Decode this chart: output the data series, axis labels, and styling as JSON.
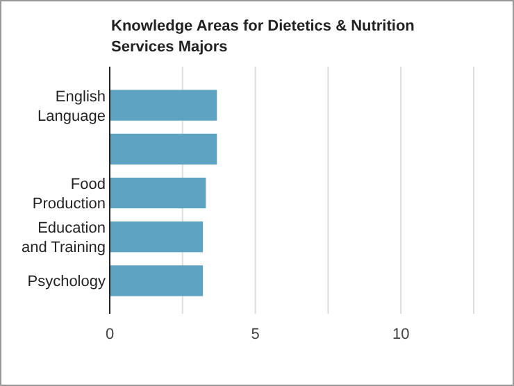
{
  "chart_data": {
    "type": "bar",
    "orientation": "horizontal",
    "title": "Knowledge Areas for Dietetics & Nutrition Services Majors",
    "categories": [
      "English Language",
      null,
      "Food Production",
      "Education and Training",
      "Psychology"
    ],
    "values": [
      3.68,
      3.68,
      3.3,
      3.2,
      3.2
    ],
    "color": "#5ea3c1",
    "xlim": [
      0,
      12.5
    ],
    "xticks": [
      0,
      {
        "value": 2.5,
        "label": null
      },
      5,
      {
        "value": 7.5,
        "label": null
      },
      10,
      {
        "value": 12.5,
        "label": null
      }
    ],
    "grid": "x"
  }
}
